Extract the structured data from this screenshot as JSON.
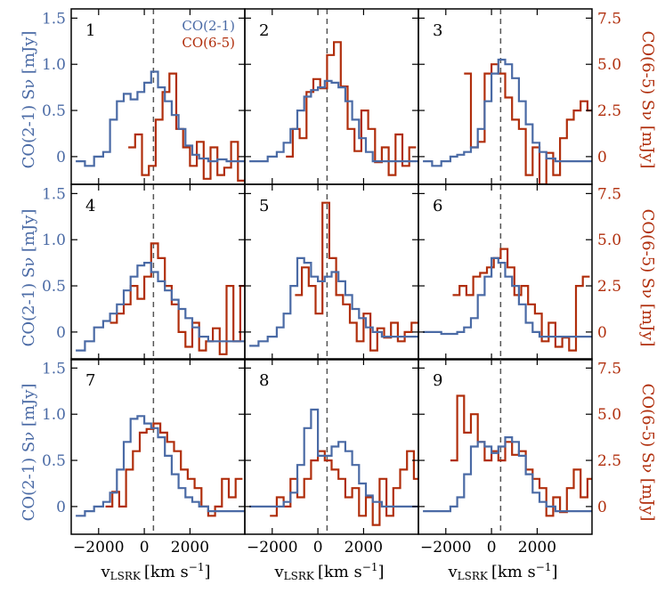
{
  "colors": {
    "co21": "#4a6aa5",
    "co65": "#b02e0c",
    "axis": "#000000",
    "dash": "#555555"
  },
  "chart_data": {
    "type": "line",
    "layout": "3x3 grid of step-line spectra",
    "legend": {
      "entries": [
        "CO(2-1)",
        "CO(6-5)"
      ],
      "placement": "top-right of panel 1"
    },
    "xlabel_main": "v",
    "xlabel_sub": "LSRK",
    "xlabel_units": "[km s",
    "xlabel_exp": "−1",
    "xlabel_close": "]",
    "xlim": [
      -3200,
      4400
    ],
    "xticks": [
      -2000,
      0,
      2000
    ],
    "xtick_labels": [
      "−2000",
      "0",
      "2000"
    ],
    "left_ylabel": "CO(2-1) Sν [mJy]",
    "right_ylabel": "CO(6-5) Sν [mJy]",
    "left_ylim": [
      -0.3,
      1.6
    ],
    "left_yticks": [
      0,
      0.5,
      1.0,
      1.5
    ],
    "left_ytick_labels": [
      "0",
      "0.5",
      "1.0",
      "1.5"
    ],
    "right_ylim": [
      -1.5,
      8.0
    ],
    "right_yticks": [
      0,
      2.5,
      5.0,
      7.5
    ],
    "right_ytick_labels": [
      "0",
      "2.5",
      "5.0",
      "7.5"
    ],
    "dashed_line_x": 400,
    "panels": [
      {
        "label": "1",
        "co21": {
          "x": [
            -3000,
            -2600,
            -2200,
            -1800,
            -1500,
            -1200,
            -900,
            -600,
            -300,
            0,
            300,
            600,
            900,
            1200,
            1500,
            1800,
            2100,
            2400,
            2800,
            3200,
            3600,
            4000
          ],
          "y": [
            -0.05,
            -0.1,
            0.0,
            0.05,
            0.4,
            0.6,
            0.68,
            0.62,
            0.7,
            0.8,
            0.92,
            0.75,
            0.6,
            0.45,
            0.3,
            0.12,
            0.02,
            -0.02,
            -0.05,
            -0.03,
            -0.05,
            -0.05
          ]
        },
        "co65": {
          "x": [
            -700,
            -400,
            -100,
            200,
            500,
            800,
            1100,
            1400,
            1700,
            2000,
            2300,
            2600,
            2900,
            3200,
            3500,
            3800,
            4100
          ],
          "y": [
            0.5,
            1.2,
            -1.0,
            -0.5,
            2.0,
            3.5,
            4.5,
            1.5,
            0.5,
            -0.5,
            0.8,
            -1.2,
            0.5,
            -1.0,
            -0.6,
            0.8,
            -1.3
          ]
        }
      },
      {
        "label": "2",
        "co21": {
          "x": [
            -3000,
            -2600,
            -2200,
            -1800,
            -1500,
            -1200,
            -900,
            -600,
            -300,
            0,
            300,
            600,
            900,
            1200,
            1500,
            1800,
            2100,
            2400,
            2800,
            3200,
            3600,
            4000
          ],
          "y": [
            -0.05,
            -0.05,
            0.0,
            0.05,
            0.15,
            0.3,
            0.5,
            0.65,
            0.72,
            0.75,
            0.82,
            0.8,
            0.75,
            0.6,
            0.4,
            0.2,
            0.05,
            -0.05,
            -0.05,
            -0.05,
            -0.05,
            -0.05
          ]
        },
        "co65": {
          "x": [
            -1400,
            -1100,
            -800,
            -500,
            -200,
            100,
            400,
            700,
            1000,
            1300,
            1600,
            1900,
            2200,
            2500,
            2800,
            3100,
            3400,
            3700,
            4000
          ],
          "y": [
            0.0,
            1.5,
            1.0,
            3.5,
            4.2,
            3.7,
            5.5,
            6.2,
            3.8,
            1.5,
            0.3,
            2.5,
            1.5,
            -0.3,
            0.5,
            -1.0,
            1.2,
            -0.5,
            0.5
          ]
        }
      },
      {
        "label": "3",
        "co21": {
          "x": [
            -3000,
            -2600,
            -2200,
            -1800,
            -1500,
            -1200,
            -900,
            -600,
            -300,
            0,
            300,
            600,
            900,
            1200,
            1500,
            1800,
            2100,
            2400,
            2800,
            3200,
            3600,
            4000
          ],
          "y": [
            -0.05,
            -0.1,
            -0.05,
            0.0,
            0.02,
            0.05,
            0.1,
            0.3,
            0.6,
            0.9,
            1.05,
            1.0,
            0.85,
            0.6,
            0.35,
            0.15,
            0.05,
            -0.02,
            -0.05,
            -0.05,
            -0.05,
            -0.05
          ]
        },
        "co65": {
          "x": [
            -1200,
            -900,
            -600,
            -300,
            0,
            300,
            600,
            900,
            1200,
            1500,
            1800,
            2100,
            2400,
            2700,
            3000,
            3300,
            3600,
            3900,
            4200
          ],
          "y": [
            4.5,
            0.5,
            0.8,
            4.5,
            5.0,
            4.5,
            3.2,
            2.0,
            1.5,
            -1.0,
            0.5,
            -1.5,
            0.2,
            -1.0,
            1.0,
            2.0,
            2.5,
            3.0,
            2.5
          ]
        }
      },
      {
        "label": "4",
        "co21": {
          "x": [
            -3000,
            -2600,
            -2200,
            -1800,
            -1500,
            -1200,
            -900,
            -600,
            -300,
            0,
            300,
            600,
            900,
            1200,
            1500,
            1800,
            2100,
            2400,
            2800,
            3200,
            3600,
            4000
          ],
          "y": [
            -0.2,
            -0.1,
            0.05,
            0.12,
            0.2,
            0.3,
            0.45,
            0.6,
            0.72,
            0.75,
            0.65,
            0.55,
            0.45,
            0.35,
            0.25,
            0.15,
            0.05,
            -0.05,
            -0.1,
            -0.1,
            -0.1,
            -0.1
          ]
        },
        "co65": {
          "x": [
            -1500,
            -1200,
            -900,
            -600,
            -300,
            0,
            300,
            600,
            900,
            1200,
            1500,
            1800,
            2100,
            2400,
            2700,
            3000,
            3300,
            3600,
            3900,
            4200
          ],
          "y": [
            0.5,
            1.0,
            1.5,
            2.5,
            1.8,
            3.0,
            4.8,
            4.0,
            2.5,
            1.5,
            0.0,
            -0.8,
            0.5,
            -1.0,
            -0.5,
            0.2,
            -1.2,
            2.5,
            -0.5,
            2.5
          ]
        }
      },
      {
        "label": "5",
        "co21": {
          "x": [
            -3000,
            -2600,
            -2200,
            -1800,
            -1500,
            -1200,
            -900,
            -600,
            -300,
            0,
            300,
            600,
            900,
            1200,
            1500,
            1800,
            2100,
            2400,
            2800,
            3200,
            3600,
            4000
          ],
          "y": [
            -0.15,
            -0.1,
            -0.05,
            0.05,
            0.2,
            0.5,
            0.8,
            0.75,
            0.6,
            0.55,
            0.6,
            0.65,
            0.55,
            0.4,
            0.25,
            0.15,
            0.05,
            0.0,
            -0.05,
            -0.05,
            -0.05,
            -0.05
          ]
        },
        "co65": {
          "x": [
            -1000,
            -700,
            -400,
            -100,
            200,
            500,
            800,
            1100,
            1400,
            1700,
            2000,
            2300,
            2600,
            2900,
            3200,
            3500,
            3800,
            4100
          ],
          "y": [
            2.0,
            3.5,
            2.5,
            1.0,
            7.0,
            4.0,
            2.0,
            1.5,
            0.5,
            -0.5,
            1.0,
            -1.0,
            0.2,
            -0.3,
            0.5,
            -0.5,
            0.0,
            0.5
          ]
        }
      },
      {
        "label": "6",
        "co21": {
          "x": [
            -3000,
            -2600,
            -2200,
            -1800,
            -1500,
            -1200,
            -900,
            -600,
            -300,
            0,
            300,
            600,
            900,
            1200,
            1500,
            1800,
            2100,
            2400,
            2800,
            3200,
            3600,
            4000
          ],
          "y": [
            0.0,
            0.0,
            -0.02,
            -0.02,
            0.0,
            0.05,
            0.15,
            0.4,
            0.6,
            0.8,
            0.75,
            0.6,
            0.5,
            0.3,
            0.1,
            0.0,
            -0.05,
            -0.05,
            -0.05,
            -0.05,
            -0.05,
            -0.05
          ]
        },
        "co65": {
          "x": [
            -1700,
            -1400,
            -1100,
            -800,
            -500,
            -200,
            100,
            400,
            700,
            1000,
            1300,
            1600,
            1900,
            2200,
            2500,
            2800,
            3100,
            3400,
            3700,
            4000
          ],
          "y": [
            2.0,
            2.5,
            2.0,
            3.0,
            3.2,
            3.5,
            4.0,
            4.5,
            3.5,
            2.0,
            2.5,
            1.5,
            1.0,
            -0.5,
            0.5,
            -0.8,
            -0.3,
            -1.0,
            2.5,
            3.0
          ]
        }
      },
      {
        "label": "7",
        "co21": {
          "x": [
            -3000,
            -2600,
            -2200,
            -1800,
            -1500,
            -1200,
            -900,
            -600,
            -300,
            0,
            300,
            600,
            900,
            1200,
            1500,
            1800,
            2100,
            2400,
            2800,
            3200,
            3600,
            4000
          ],
          "y": [
            -0.1,
            -0.05,
            0.0,
            0.05,
            0.15,
            0.4,
            0.7,
            0.95,
            0.98,
            0.9,
            0.85,
            0.75,
            0.55,
            0.35,
            0.2,
            0.1,
            0.05,
            0.0,
            -0.05,
            -0.05,
            -0.05,
            -0.05
          ]
        },
        "co65": {
          "x": [
            -1700,
            -1400,
            -1100,
            -800,
            -500,
            -200,
            100,
            400,
            700,
            1000,
            1300,
            1600,
            1900,
            2200,
            2500,
            2800,
            3100,
            3400,
            3700,
            4000
          ],
          "y": [
            0.0,
            0.8,
            0.0,
            2.0,
            3.0,
            4.0,
            4.2,
            4.5,
            4.0,
            3.5,
            3.0,
            2.0,
            1.5,
            1.0,
            0.0,
            -0.5,
            0.0,
            1.5,
            0.5,
            1.5
          ]
        }
      },
      {
        "label": "8",
        "co21": {
          "x": [
            -3000,
            -2600,
            -2200,
            -1800,
            -1500,
            -1200,
            -900,
            -600,
            -300,
            0,
            300,
            600,
            900,
            1200,
            1500,
            1800,
            2100,
            2400,
            2800,
            3200,
            3600,
            4000
          ],
          "y": [
            0.0,
            0.0,
            0.0,
            0.0,
            0.05,
            0.15,
            0.45,
            0.85,
            1.05,
            0.55,
            0.55,
            0.65,
            0.7,
            0.6,
            0.45,
            0.25,
            0.12,
            0.05,
            0.0,
            0.0,
            0.0,
            0.0
          ]
        },
        "co65": {
          "x": [
            -2100,
            -1800,
            -1500,
            -1200,
            -900,
            -600,
            -300,
            0,
            300,
            600,
            900,
            1200,
            1500,
            1800,
            2100,
            2400,
            2700,
            3000,
            3300,
            3600,
            3900,
            4200
          ],
          "y": [
            -0.5,
            0.5,
            0.0,
            1.5,
            0.5,
            1.5,
            2.5,
            3.0,
            2.5,
            2.0,
            1.5,
            0.5,
            1.0,
            -0.5,
            0.5,
            -1.0,
            1.5,
            -0.5,
            1.0,
            2.0,
            3.0,
            1.5
          ]
        }
      },
      {
        "label": "9",
        "co21": {
          "x": [
            -3000,
            -2600,
            -2200,
            -1800,
            -1500,
            -1200,
            -900,
            -600,
            -300,
            0,
            300,
            600,
            900,
            1200,
            1500,
            1800,
            2100,
            2400,
            2800,
            3200,
            3600,
            4000
          ],
          "y": [
            -0.05,
            -0.05,
            -0.05,
            0.0,
            0.1,
            0.35,
            0.65,
            0.7,
            0.65,
            0.58,
            0.65,
            0.75,
            0.7,
            0.55,
            0.35,
            0.15,
            0.05,
            0.0,
            -0.05,
            -0.05,
            -0.05,
            -0.05
          ]
        },
        "co65": {
          "x": [
            -1800,
            -1500,
            -1200,
            -900,
            -600,
            -300,
            0,
            300,
            600,
            900,
            1200,
            1500,
            1800,
            2100,
            2400,
            2700,
            3000,
            3300,
            3600,
            3900,
            4200
          ],
          "y": [
            2.5,
            6.0,
            4.0,
            5.0,
            3.5,
            2.5,
            3.0,
            2.5,
            3.5,
            2.8,
            3.0,
            2.0,
            1.5,
            1.0,
            -0.5,
            0.5,
            -0.3,
            1.0,
            2.0,
            0.5,
            1.5
          ]
        }
      }
    ],
    "legend_panel": "1"
  }
}
